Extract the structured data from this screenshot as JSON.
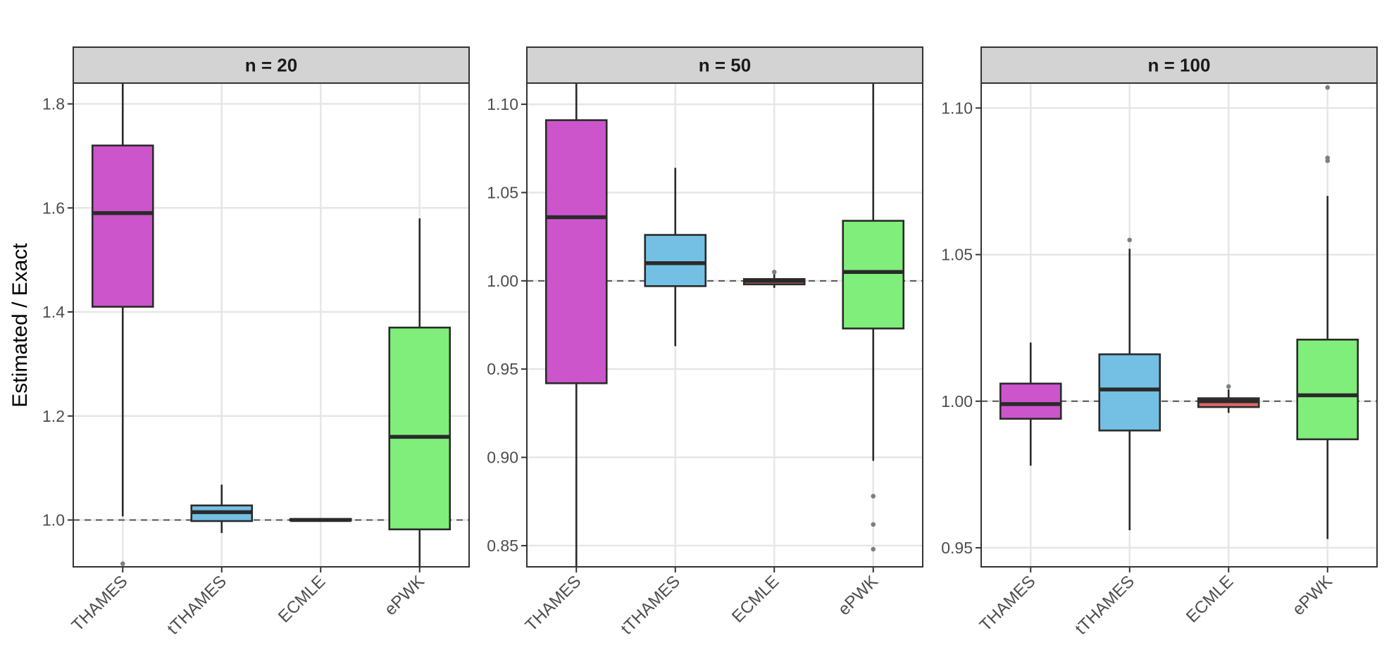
{
  "chart_data": {
    "type": "boxplot",
    "ylabel": "Estimated / Exact",
    "reference_line": 1.0,
    "reference_style": "dashed",
    "categories": [
      "THAMES",
      "tTHAMES",
      "ECMLE",
      "ePWK"
    ],
    "colors": {
      "THAMES": "#CC55CC",
      "tTHAMES": "#74C0E4",
      "ECMLE": "#E06666",
      "ePWK": "#80EE7A",
      "strip_bg": "#D3D3D3",
      "grid": "#E6E6E6",
      "box_line": "#2A2A2A",
      "outlier": "#7F7F7F",
      "axis_text": "#4D4D4D"
    },
    "panels": [
      {
        "title": "n = 20",
        "ylim": [
          0.91,
          1.84
        ],
        "yticks": [
          1.0,
          1.2,
          1.4,
          1.6,
          1.8
        ],
        "ytick_labels": [
          "1.0",
          "1.2",
          "1.4",
          "1.6",
          "1.8"
        ],
        "boxes": [
          {
            "category": "THAMES",
            "whisker_low": 1.007,
            "q1": 1.41,
            "median": 1.59,
            "q3": 1.72,
            "whisker_high": 1.84,
            "outliers": [
              0.916
            ]
          },
          {
            "category": "tTHAMES",
            "whisker_low": 0.975,
            "q1": 0.998,
            "median": 1.015,
            "q3": 1.028,
            "whisker_high": 1.068,
            "outliers": []
          },
          {
            "category": "ECMLE",
            "whisker_low": 0.999,
            "q1": 0.999,
            "median": 1.0,
            "q3": 1.002,
            "whisker_high": 1.003,
            "outliers": []
          },
          {
            "category": "ePWK",
            "whisker_low": 0.91,
            "q1": 0.982,
            "median": 1.16,
            "q3": 1.37,
            "whisker_high": 1.58,
            "outliers": []
          }
        ]
      },
      {
        "title": "n = 50",
        "ylim": [
          0.838,
          1.112
        ],
        "yticks": [
          0.85,
          0.9,
          0.95,
          1.0,
          1.05,
          1.1
        ],
        "ytick_labels": [
          "0.85",
          "0.90",
          "0.95",
          "1.00",
          "1.05",
          "1.10"
        ],
        "boxes": [
          {
            "category": "THAMES",
            "whisker_low": 0.838,
            "q1": 0.942,
            "median": 1.036,
            "q3": 1.091,
            "whisker_high": 1.112,
            "outliers": []
          },
          {
            "category": "tTHAMES",
            "whisker_low": 0.963,
            "q1": 0.997,
            "median": 1.01,
            "q3": 1.026,
            "whisker_high": 1.064,
            "outliers": []
          },
          {
            "category": "ECMLE",
            "whisker_low": 0.996,
            "q1": 0.998,
            "median": 1.0,
            "q3": 1.001,
            "whisker_high": 1.004,
            "outliers": [
              1.005
            ]
          },
          {
            "category": "ePWK",
            "whisker_low": 0.898,
            "q1": 0.973,
            "median": 1.005,
            "q3": 1.034,
            "whisker_high": 1.112,
            "outliers": [
              0.878,
              0.862,
              0.848
            ]
          }
        ]
      },
      {
        "title": "n = 100",
        "ylim": [
          0.9435,
          1.1085
        ],
        "yticks": [
          0.95,
          1.0,
          1.05,
          1.1
        ],
        "ytick_labels": [
          "0.95",
          "1.00",
          "1.05",
          "1.10"
        ],
        "boxes": [
          {
            "category": "THAMES",
            "whisker_low": 0.978,
            "q1": 0.994,
            "median": 0.999,
            "q3": 1.006,
            "whisker_high": 1.02,
            "outliers": []
          },
          {
            "category": "tTHAMES",
            "whisker_low": 0.956,
            "q1": 0.99,
            "median": 1.004,
            "q3": 1.016,
            "whisker_high": 1.052,
            "outliers": [
              1.055
            ]
          },
          {
            "category": "ECMLE",
            "whisker_low": 0.996,
            "q1": 0.998,
            "median": 1.0,
            "q3": 1.001,
            "whisker_high": 1.004,
            "outliers": [
              1.005
            ]
          },
          {
            "category": "ePWK",
            "whisker_low": 0.953,
            "q1": 0.987,
            "median": 1.002,
            "q3": 1.021,
            "whisker_high": 1.07,
            "outliers": [
              1.082,
              1.083,
              1.107
            ]
          }
        ]
      }
    ]
  }
}
